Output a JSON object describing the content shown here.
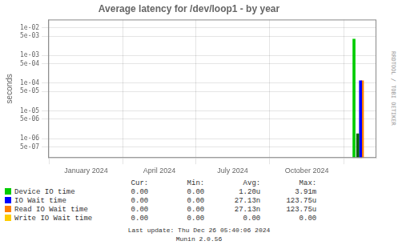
{
  "chart_data": {
    "type": "bar",
    "title": "Average latency for /dev/loop1 - by year",
    "y_label": "seconds",
    "log": "y",
    "grid": true,
    "xlim": [
      1700000000,
      1735200000
    ],
    "xticks": [
      {
        "value": 1704067200,
        "label": "January 2024"
      },
      {
        "value": 1711929600,
        "label": "April 2024"
      },
      {
        "value": 1719792000,
        "label": "July 2024"
      },
      {
        "value": 1727740800,
        "label": "October 2024"
      }
    ],
    "ylim": [
      2e-07,
      0.02
    ],
    "yticks": [
      {
        "value": 5e-07,
        "label": "5e-07"
      },
      {
        "value": 1e-06,
        "label": "1e-06"
      },
      {
        "value": 5e-06,
        "label": "5e-06"
      },
      {
        "value": 1e-05,
        "label": "1e-05"
      },
      {
        "value": 5e-05,
        "label": "5e-05"
      },
      {
        "value": 0.0001,
        "label": "1e-04"
      },
      {
        "value": 0.0005,
        "label": "5e-04"
      },
      {
        "value": 0.001,
        "label": "1e-03"
      },
      {
        "value": 0.005,
        "label": "5e-03"
      },
      {
        "value": 0.01,
        "label": "1e-02"
      }
    ],
    "stat_headers": [
      "Cur:",
      "Min:",
      "Avg:",
      "Max:"
    ],
    "series": [
      {
        "name": "Device IO time",
        "color": "#00cc00",
        "colors": [
          "#00cc00",
          "#006600"
        ],
        "x": [
          1732800000,
          1733200000
        ],
        "values": [
          0.00391,
          1.5e-06
        ],
        "cur": "0.00",
        "min": "0.00",
        "avg": "1.20u",
        "max": "3.91m"
      },
      {
        "name": "IO Wait time",
        "color": "#0000ff",
        "x": [
          1733500000
        ],
        "values": [
          0.00012375
        ],
        "cur": "0.00",
        "min": "0.00",
        "avg": "27.13n",
        "max": "123.75u"
      },
      {
        "name": "Read IO Wait time",
        "color": "#ff7f00",
        "x": [
          1733700000
        ],
        "values": [
          0.00012375
        ],
        "cur": "0.00",
        "min": "0.00",
        "avg": "27.13n",
        "max": "123.75u"
      },
      {
        "name": "Write IO Wait time",
        "color": "#ffcc00",
        "x": [],
        "values": [],
        "cur": "0.00",
        "min": "0.00",
        "avg": "0.00",
        "max": "0.00"
      }
    ],
    "annotations": [
      "RRDTOOL / TOBI OETIKER",
      "Last update: Thu Dec 26 05:40:06 2024",
      "Munin 2.0.56"
    ]
  }
}
